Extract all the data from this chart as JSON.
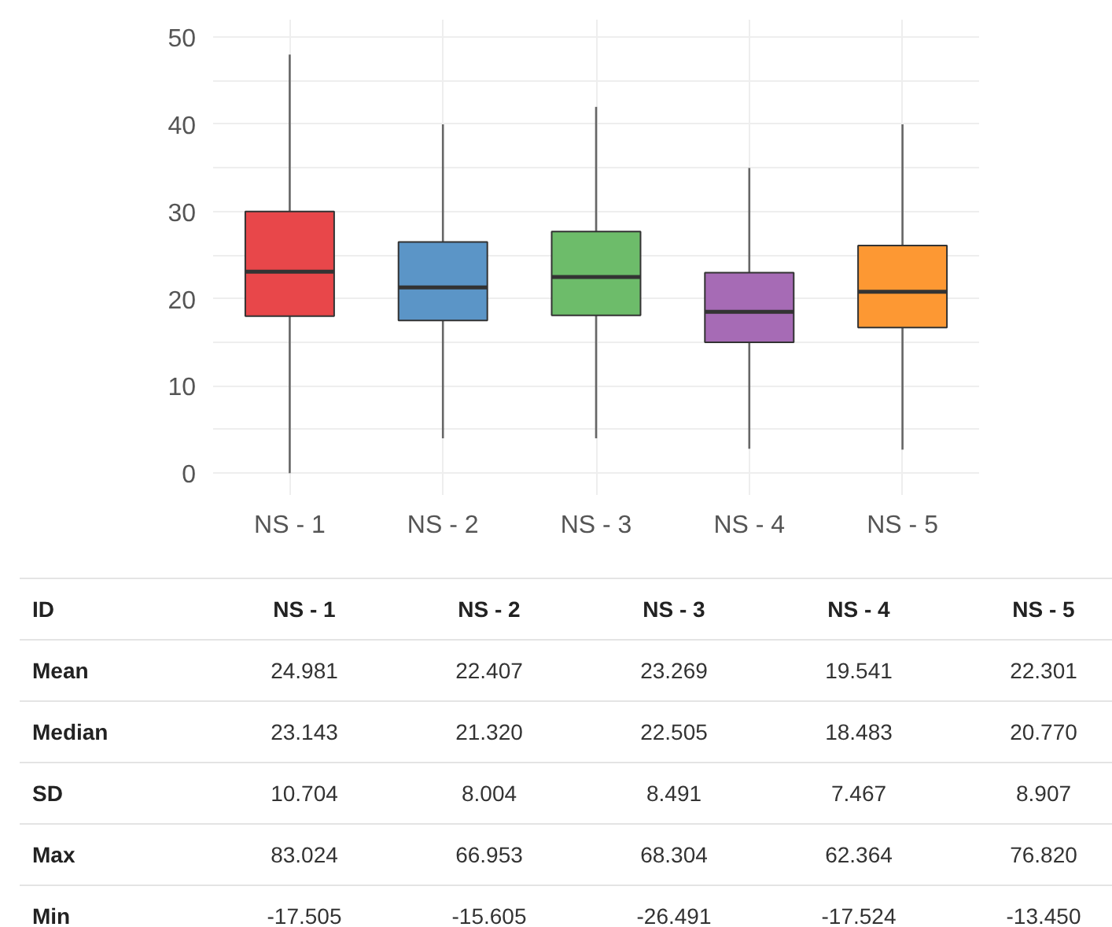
{
  "chart_data": [
    {
      "type": "box",
      "categories": [
        "NS - 1",
        "NS - 2",
        "NS - 3",
        "NS - 4",
        "NS - 5"
      ],
      "boxes": [
        {
          "low": 0,
          "q1": 18.0,
          "median": 23.1,
          "q3": 30.0,
          "high": 48.0
        },
        {
          "low": 4.0,
          "q1": 17.5,
          "median": 21.3,
          "q3": 26.5,
          "high": 40.0
        },
        {
          "low": 4.0,
          "q1": 18.1,
          "median": 22.5,
          "q3": 27.7,
          "high": 42.0
        },
        {
          "low": 2.8,
          "q1": 15.0,
          "median": 18.5,
          "q3": 23.0,
          "high": 35.0
        },
        {
          "low": 2.7,
          "q1": 16.7,
          "median": 20.8,
          "q3": 26.1,
          "high": 40.0
        }
      ],
      "colors": [
        "#e8474a",
        "#5b95c7",
        "#6dbc6a",
        "#a66bb5",
        "#fd9833"
      ],
      "ylim": [
        -2.5,
        52
      ],
      "yticks": [
        0,
        {
          "value": 5,
          "label": null
        },
        10,
        {
          "value": 15,
          "label": null
        },
        20,
        {
          "value": 25,
          "label": null
        },
        30,
        {
          "value": 35,
          "label": null
        },
        40,
        {
          "value": 45,
          "label": null
        },
        50
      ],
      "grid": true
    },
    {
      "type": "heatmap",
      "annotations": [
        "ID"
      ],
      "data_labels": true,
      "categories": [
        "NS - 1",
        "NS - 2",
        "NS - 3",
        "NS - 4",
        "NS - 5"
      ],
      "y_categories": [
        "Mean",
        "Median",
        "SD",
        "Max",
        "Min"
      ],
      "cells": [
        [
          24.981,
          22.407,
          23.269,
          19.541,
          22.301
        ],
        [
          23.143,
          21.32,
          22.505,
          18.483,
          20.77
        ],
        [
          10.704,
          8.004,
          8.491,
          7.467,
          8.907
        ],
        [
          83.024,
          66.953,
          68.304,
          62.364,
          76.82
        ],
        [
          -17.505,
          -15.605,
          -26.491,
          -17.524,
          -13.45
        ]
      ],
      "cell_labels": [
        [
          "24.981",
          "22.407",
          "23.269",
          "19.541",
          "22.301"
        ],
        [
          "23.143",
          "21.320",
          "22.505",
          "18.483",
          "20.770"
        ],
        [
          "10.704",
          "8.004",
          "8.491",
          "7.467",
          "8.907"
        ],
        [
          "83.024",
          "66.953",
          "68.304",
          "62.364",
          "76.820"
        ],
        [
          "-17.505",
          "-15.605",
          "-26.491",
          "-17.524",
          "-13.450"
        ]
      ]
    }
  ]
}
